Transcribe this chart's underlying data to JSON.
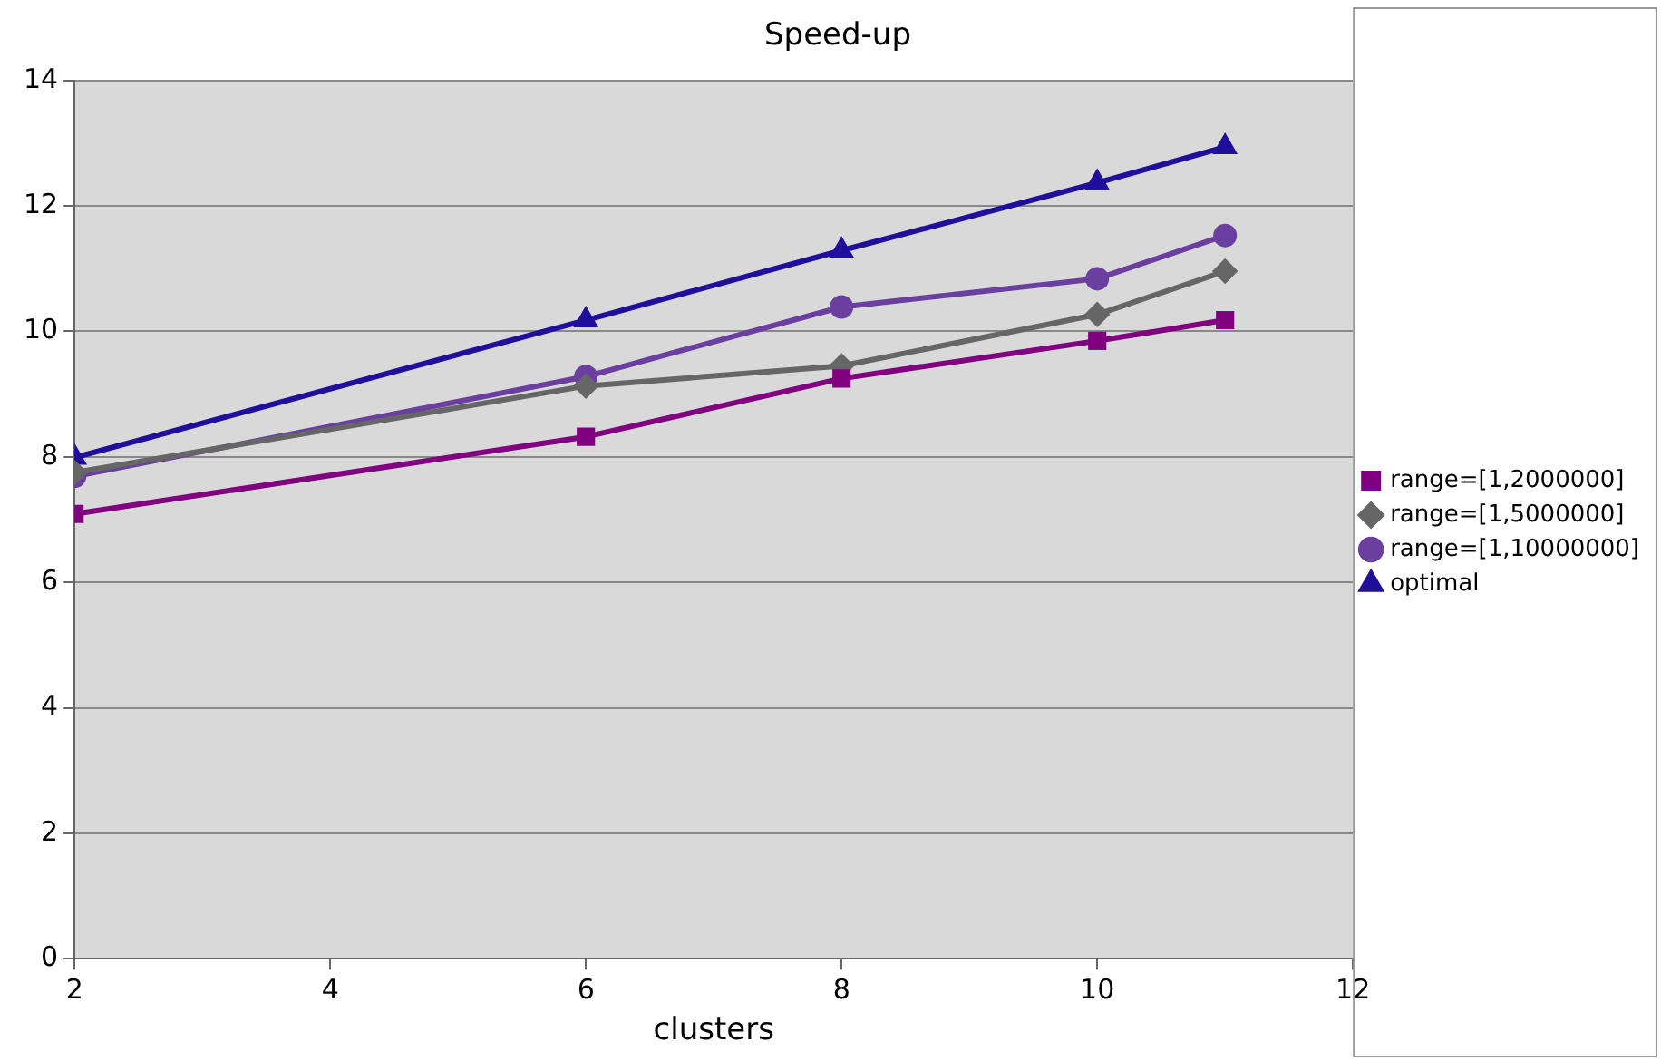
{
  "chart_data": {
    "type": "line",
    "title": "Speed-up",
    "xlabel": "clusters",
    "x": [
      2,
      6,
      8,
      10,
      11
    ],
    "series": [
      {
        "name": "range=[1,2000000]",
        "color": "#800080",
        "marker": "square",
        "values": [
          7.09,
          8.32,
          9.25,
          9.85,
          10.18
        ]
      },
      {
        "name": "range=[1,5000000]",
        "color": "#666666",
        "marker": "diamond",
        "values": [
          7.75,
          9.13,
          9.45,
          10.27,
          10.96
        ]
      },
      {
        "name": "range=[1,10000000]",
        "color": "#6b3fa0",
        "marker": "circle",
        "values": [
          7.69,
          9.28,
          10.39,
          10.84,
          11.53
        ]
      },
      {
        "name": "optimal",
        "color": "#1f0f9a",
        "marker": "triangle",
        "values": [
          7.99,
          10.18,
          11.29,
          12.37,
          12.94
        ]
      }
    ],
    "xlim": [
      2,
      12
    ],
    "xticks": [
      2,
      4,
      6,
      8,
      10,
      12
    ],
    "ylim": [
      0,
      14
    ],
    "yticks": [
      0,
      2,
      4,
      6,
      8,
      10,
      12,
      14
    ],
    "grid": "y",
    "legend": "right",
    "line_style": "solid"
  }
}
